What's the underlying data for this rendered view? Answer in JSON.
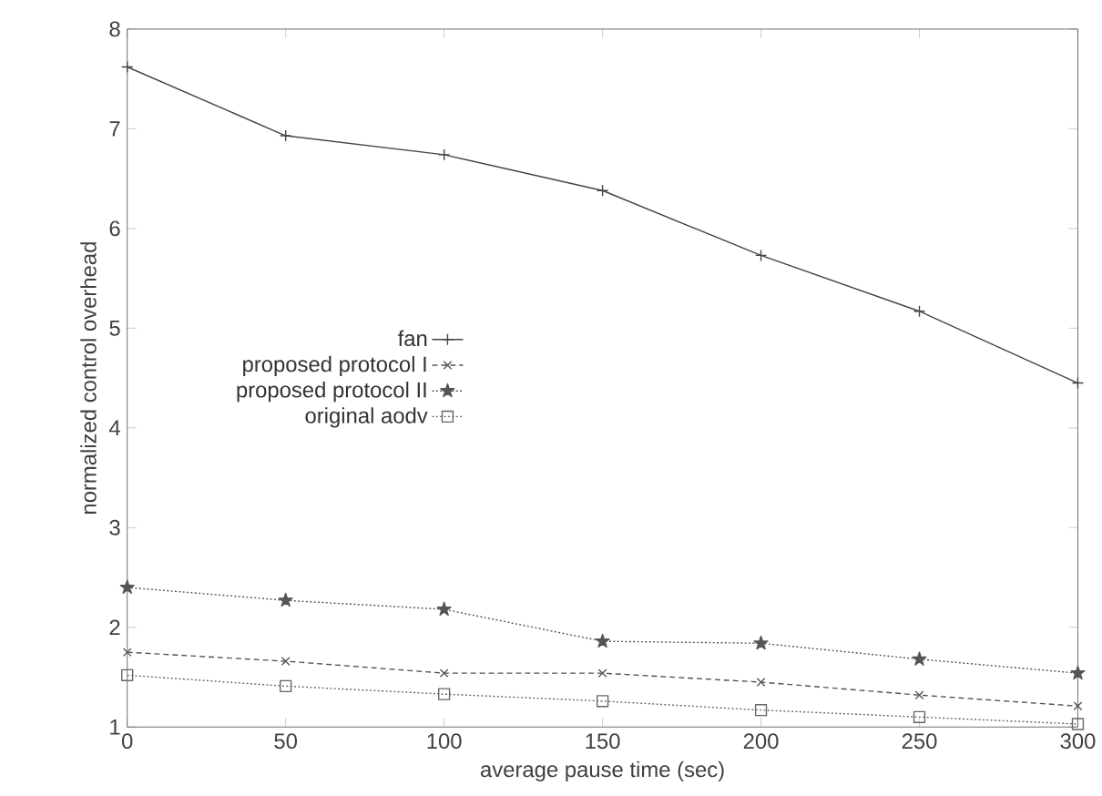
{
  "chart_data": {
    "type": "line",
    "xlabel": "average pause time (sec)",
    "ylabel": "normalized control overhead",
    "x": [
      0,
      50,
      100,
      150,
      200,
      250,
      300
    ],
    "series": [
      {
        "name": "fan",
        "color": "#444444",
        "marker": "plus",
        "line_style": "solid",
        "values": [
          7.62,
          6.93,
          6.74,
          6.38,
          5.73,
          5.17,
          4.45
        ]
      },
      {
        "name": "proposed protocol I",
        "color": "#555555",
        "marker": "cross",
        "line_style": "dashed",
        "values": [
          1.75,
          1.66,
          1.54,
          1.54,
          1.45,
          1.32,
          1.21
        ]
      },
      {
        "name": "proposed protocol II",
        "color": "#555555",
        "marker": "star",
        "line_style": "dotted",
        "values": [
          2.4,
          2.27,
          2.18,
          1.86,
          1.84,
          1.68,
          1.54
        ]
      },
      {
        "name": "original aodv",
        "color": "#666666",
        "marker": "square",
        "line_style": "dotted",
        "values": [
          1.52,
          1.41,
          1.33,
          1.26,
          1.17,
          1.1,
          1.03
        ]
      }
    ],
    "xlim": [
      0,
      300
    ],
    "xticks": [
      0,
      50,
      100,
      150,
      200,
      250,
      300
    ],
    "ylim": [
      1,
      8
    ],
    "yticks": [
      1,
      2,
      3,
      4,
      5,
      6,
      7,
      8
    ],
    "legend": "left"
  }
}
